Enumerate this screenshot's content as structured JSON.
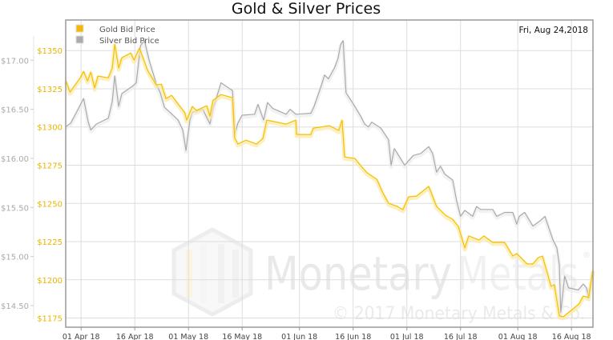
{
  "chart_data": {
    "type": "line",
    "title": "Gold & Silver Prices",
    "date_label": "Fri, Aug 24,2018",
    "x_unit": "days since 01 Apr 2018",
    "xlim": [
      -4.3,
      143
    ],
    "x_ticks": [
      {
        "day": 0,
        "label": "01 Apr 18"
      },
      {
        "day": 15,
        "label": "16 Apr 18"
      },
      {
        "day": 30,
        "label": "01 May 18"
      },
      {
        "day": 45,
        "label": "16 May 18"
      },
      {
        "day": 61,
        "label": "01 Jun 18"
      },
      {
        "day": 76,
        "label": "16 Jun 18"
      },
      {
        "day": 91,
        "label": "01 Jul 18"
      },
      {
        "day": 106,
        "label": "16 Jul 18"
      },
      {
        "day": 122,
        "label": "01 Aug 18"
      },
      {
        "day": 137,
        "label": "16 Aug 18"
      }
    ],
    "gold_axis": {
      "ylim": [
        1169,
        1370
      ],
      "ticks": [
        1175,
        1200,
        1225,
        1250,
        1275,
        1300,
        1325,
        1350
      ],
      "labels": [
        "$1175",
        "$1200",
        "$1225",
        "$1250",
        "$1275",
        "$1300",
        "$1325",
        "$1350"
      ],
      "color": "#f5c000"
    },
    "silver_axis": {
      "ylim": [
        14.28,
        17.41
      ],
      "ticks": [
        14.5,
        15.0,
        15.5,
        16.0,
        16.5,
        17.0
      ],
      "labels": [
        "$14.50",
        "$15.00",
        "$15.50",
        "$16.00",
        "$16.50",
        "$17.00"
      ],
      "color": "#aaaaaa"
    },
    "legend": {
      "placement": "top-left",
      "entries": [
        "Gold Bid Price",
        "Silver Bid Price"
      ]
    },
    "series": [
      {
        "name": "Gold Bid Price",
        "axis": "gold",
        "color": "#f5c000",
        "points": [
          [
            -4.3,
            1330.6
          ],
          [
            -3.1,
            1322.8
          ],
          [
            -0.2,
            1332.2
          ],
          [
            0.7,
            1336.4
          ],
          [
            1.8,
            1330.1
          ],
          [
            2.7,
            1335.9
          ],
          [
            3.8,
            1325.4
          ],
          [
            4.7,
            1333.3
          ],
          [
            7.6,
            1332.2
          ],
          [
            8.7,
            1338.5
          ],
          [
            9.4,
            1354.2
          ],
          [
            10.5,
            1338.5
          ],
          [
            11.4,
            1345.3
          ],
          [
            13.9,
            1348.4
          ],
          [
            14.8,
            1343.7
          ],
          [
            16.3,
            1351.6
          ],
          [
            18.6,
            1336.9
          ],
          [
            21.0,
            1327.5
          ],
          [
            22.4,
            1328.0
          ],
          [
            23.7,
            1318.6
          ],
          [
            25.3,
            1320.7
          ],
          [
            27.1,
            1315.0
          ],
          [
            28.9,
            1309.7
          ],
          [
            29.5,
            1304.5
          ],
          [
            31.1,
            1313.4
          ],
          [
            32.2,
            1310.8
          ],
          [
            35.1,
            1313.9
          ],
          [
            36.0,
            1307.1
          ],
          [
            36.9,
            1317.6
          ],
          [
            39.1,
            1321.2
          ],
          [
            42.3,
            1319.1
          ],
          [
            42.9,
            1293.0
          ],
          [
            43.8,
            1288.8
          ],
          [
            46.1,
            1291.4
          ],
          [
            49.0,
            1288.8
          ],
          [
            50.8,
            1292.5
          ],
          [
            51.9,
            1304.5
          ],
          [
            57.3,
            1301.9
          ],
          [
            60.0,
            1304.5
          ],
          [
            60.2,
            1295.1
          ],
          [
            64.2,
            1295.1
          ],
          [
            64.9,
            1299.3
          ],
          [
            69.4,
            1300.8
          ],
          [
            72.0,
            1297.7
          ],
          [
            72.9,
            1304.5
          ],
          [
            73.6,
            1280.4
          ],
          [
            76.5,
            1279.4
          ],
          [
            78.5,
            1273.6
          ],
          [
            79.9,
            1270.0
          ],
          [
            82.6,
            1265.8
          ],
          [
            84.3,
            1256.9
          ],
          [
            85.9,
            1250.1
          ],
          [
            88.4,
            1248.0
          ],
          [
            89.9,
            1245.9
          ],
          [
            91.5,
            1254.3
          ],
          [
            93.7,
            1254.8
          ],
          [
            97.1,
            1261.1
          ],
          [
            99.3,
            1248.0
          ],
          [
            101.8,
            1242.3
          ],
          [
            103.8,
            1239.6
          ],
          [
            105.4,
            1234.9
          ],
          [
            107.2,
            1220.8
          ],
          [
            108.3,
            1228.7
          ],
          [
            111.2,
            1226.0
          ],
          [
            112.5,
            1228.7
          ],
          [
            115.0,
            1224.5
          ],
          [
            118.3,
            1224.5
          ],
          [
            120.6,
            1215.6
          ],
          [
            121.7,
            1217.2
          ],
          [
            124.6,
            1210.4
          ],
          [
            126.2,
            1210.4
          ],
          [
            127.7,
            1214.5
          ],
          [
            128.9,
            1215.6
          ],
          [
            131.3,
            1195.7
          ],
          [
            132.2,
            1196.8
          ],
          [
            133.6,
            1176.4
          ],
          [
            134.7,
            1175.8
          ],
          [
            139.1,
            1184.2
          ],
          [
            140.3,
            1189.4
          ],
          [
            141.8,
            1188.4
          ],
          [
            143.0,
            1206.7
          ]
        ]
      },
      {
        "name": "Silver Bid Price",
        "axis": "silver",
        "color": "#aaaaaa",
        "points": [
          [
            -4.3,
            16.32
          ],
          [
            -2.9,
            16.36
          ],
          [
            -0.7,
            16.51
          ],
          [
            0.7,
            16.61
          ],
          [
            2.0,
            16.37
          ],
          [
            2.7,
            16.29
          ],
          [
            4.3,
            16.35
          ],
          [
            7.6,
            16.41
          ],
          [
            8.7,
            16.58
          ],
          [
            9.4,
            16.84
          ],
          [
            10.5,
            16.53
          ],
          [
            11.4,
            16.66
          ],
          [
            14.5,
            16.74
          ],
          [
            15.4,
            16.77
          ],
          [
            16.6,
            17.15
          ],
          [
            17.7,
            17.2
          ],
          [
            19.0,
            17.0
          ],
          [
            21.0,
            16.76
          ],
          [
            22.1,
            16.67
          ],
          [
            23.3,
            16.52
          ],
          [
            24.8,
            16.47
          ],
          [
            27.1,
            16.39
          ],
          [
            28.4,
            16.29
          ],
          [
            29.3,
            16.08
          ],
          [
            30.4,
            16.39
          ],
          [
            31.1,
            16.47
          ],
          [
            34.0,
            16.5
          ],
          [
            36.0,
            16.35
          ],
          [
            36.9,
            16.51
          ],
          [
            39.1,
            16.77
          ],
          [
            42.3,
            16.69
          ],
          [
            42.9,
            16.24
          ],
          [
            43.8,
            16.36
          ],
          [
            45.0,
            16.44
          ],
          [
            48.5,
            16.45
          ],
          [
            49.4,
            16.55
          ],
          [
            51.0,
            16.39
          ],
          [
            52.1,
            16.57
          ],
          [
            53.5,
            16.51
          ],
          [
            57.3,
            16.45
          ],
          [
            58.4,
            16.5
          ],
          [
            60.0,
            16.45
          ],
          [
            64.2,
            16.46
          ],
          [
            65.1,
            16.53
          ],
          [
            67.1,
            16.74
          ],
          [
            68.0,
            16.85
          ],
          [
            69.1,
            16.81
          ],
          [
            70.9,
            16.93
          ],
          [
            71.8,
            17.02
          ],
          [
            72.5,
            17.16
          ],
          [
            73.2,
            17.2
          ],
          [
            74.0,
            16.67
          ],
          [
            76.3,
            16.54
          ],
          [
            78.1,
            16.43
          ],
          [
            79.2,
            16.35
          ],
          [
            80.3,
            16.32
          ],
          [
            81.2,
            16.37
          ],
          [
            83.7,
            16.31
          ],
          [
            85.9,
            16.19
          ],
          [
            86.6,
            15.93
          ],
          [
            87.5,
            16.1
          ],
          [
            90.4,
            15.93
          ],
          [
            92.8,
            16.03
          ],
          [
            94.9,
            16.05
          ],
          [
            97.1,
            16.12
          ],
          [
            98.2,
            16.05
          ],
          [
            99.3,
            15.86
          ],
          [
            100.4,
            15.92
          ],
          [
            101.6,
            15.84
          ],
          [
            103.8,
            15.78
          ],
          [
            104.9,
            15.57
          ],
          [
            106.0,
            15.41
          ],
          [
            107.2,
            15.47
          ],
          [
            109.4,
            15.41
          ],
          [
            110.5,
            15.51
          ],
          [
            111.6,
            15.48
          ],
          [
            115.0,
            15.48
          ],
          [
            116.1,
            15.41
          ],
          [
            118.3,
            15.45
          ],
          [
            120.6,
            15.45
          ],
          [
            121.7,
            15.33
          ],
          [
            122.4,
            15.41
          ],
          [
            123.9,
            15.45
          ],
          [
            126.2,
            15.31
          ],
          [
            128.4,
            15.37
          ],
          [
            129.6,
            15.41
          ],
          [
            131.8,
            15.17
          ],
          [
            132.9,
            15.09
          ],
          [
            133.6,
            14.92
          ],
          [
            134.0,
            14.43
          ],
          [
            135.1,
            14.8
          ],
          [
            136.2,
            14.68
          ],
          [
            138.9,
            14.66
          ],
          [
            140.3,
            14.72
          ],
          [
            141.2,
            14.68
          ],
          [
            141.8,
            14.58
          ],
          [
            143.0,
            14.87
          ]
        ]
      }
    ],
    "watermark": {
      "name_part1": "Monetary",
      "name_part2": "Metals",
      "registered": "®",
      "copyright": "© 2017 Monetary Metals & Co."
    }
  }
}
